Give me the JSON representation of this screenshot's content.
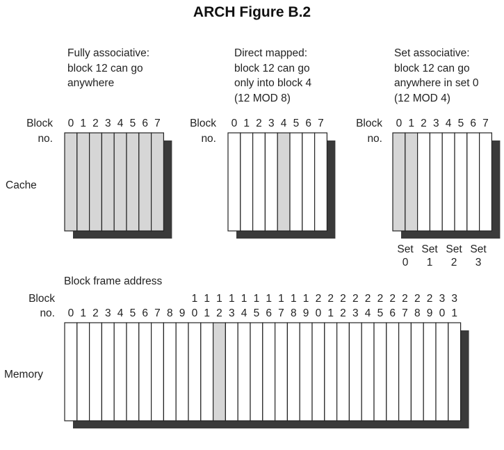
{
  "figure_title": "ARCH Figure B.2",
  "panels": [
    {
      "id": "fully",
      "description": [
        "Fully associative:",
        "block 12 can go",
        "anywhere"
      ],
      "block_label": [
        "Block",
        "no."
      ],
      "numbers": [
        "0",
        "1",
        "2",
        "3",
        "4",
        "5",
        "6",
        "7"
      ],
      "highlighted": [
        0,
        1,
        2,
        3,
        4,
        5,
        6,
        7
      ]
    },
    {
      "id": "direct",
      "description": [
        "Direct mapped:",
        "block 12 can go",
        "only into block 4",
        "(12 MOD 8)"
      ],
      "block_label": [
        "Block",
        "no."
      ],
      "numbers": [
        "0",
        "1",
        "2",
        "3",
        "4",
        "5",
        "6",
        "7"
      ],
      "highlighted": [
        4
      ]
    },
    {
      "id": "set",
      "description": [
        "Set associative:",
        "block 12 can go",
        "anywhere in set 0",
        "(12 MOD 4)"
      ],
      "block_label": [
        "Block",
        "no."
      ],
      "numbers": [
        "0",
        "1",
        "2",
        "3",
        "4",
        "5",
        "6",
        "7"
      ],
      "highlighted": [
        0,
        1
      ],
      "set_labels": [
        [
          "Set",
          "0"
        ],
        [
          "Set",
          "1"
        ],
        [
          "Set",
          "2"
        ],
        [
          "Set",
          "3"
        ]
      ]
    }
  ],
  "cache_label": "Cache",
  "memory": {
    "header": "Block frame address",
    "block_label": [
      "Block",
      "no."
    ],
    "tens": [
      "",
      "",
      "",
      "",
      "",
      "",
      "",
      "",
      "",
      "",
      "1",
      "1",
      "1",
      "1",
      "1",
      "1",
      "1",
      "1",
      "1",
      "1",
      "2",
      "2",
      "2",
      "2",
      "2",
      "2",
      "2",
      "2",
      "2",
      "2",
      "3",
      "3"
    ],
    "ones": [
      "0",
      "1",
      "2",
      "3",
      "4",
      "5",
      "6",
      "7",
      "8",
      "9",
      "0",
      "1",
      "2",
      "3",
      "4",
      "5",
      "6",
      "7",
      "8",
      "9",
      "0",
      "1",
      "2",
      "3",
      "4",
      "5",
      "6",
      "7",
      "8",
      "9",
      "0",
      "1"
    ],
    "highlighted": [
      12
    ],
    "label": "Memory"
  },
  "colors": {
    "fill_highlight": "#d6d6d6",
    "fill_normal": "#ffffff",
    "stroke": "#222222",
    "shadow": "#3a3a3a"
  }
}
